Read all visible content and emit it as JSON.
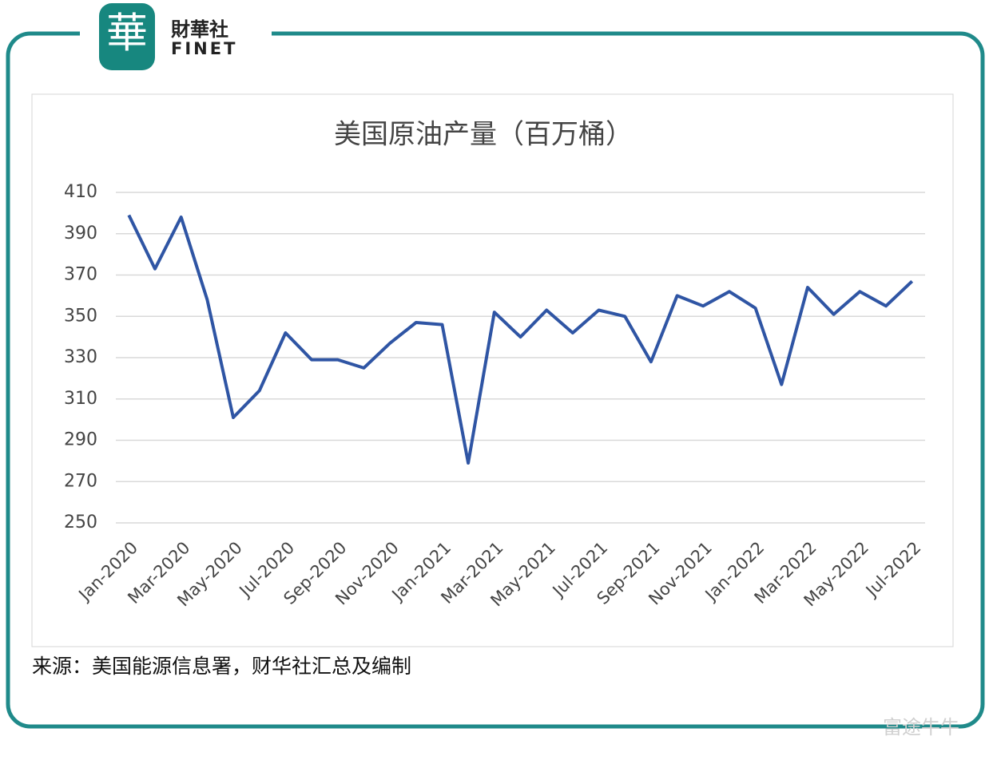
{
  "logo": {
    "mark": "華",
    "name": "財華社",
    "en": "FINET"
  },
  "chart_data": {
    "type": "line",
    "title": "美国原油产量（百万桶）",
    "categories": [
      "Jan-2020",
      null,
      "Mar-2020",
      null,
      "May-2020",
      null,
      "Jul-2020",
      null,
      "Sep-2020",
      null,
      "Nov-2020",
      null,
      "Jan-2021",
      null,
      "Mar-2021",
      null,
      "May-2021",
      null,
      "Jul-2021",
      null,
      "Sep-2021",
      null,
      "Nov-2021",
      null,
      "Jan-2022",
      null,
      "Mar-2022",
      null,
      "May-2022",
      null,
      "Jul-2022"
    ],
    "series": [
      {
        "color": "#2f55a4",
        "values": [
          399,
          373,
          398,
          358,
          301,
          314,
          342,
          329,
          329,
          325,
          337,
          347,
          346,
          279,
          352,
          340,
          353,
          342,
          353,
          350,
          328,
          360,
          355,
          362,
          354,
          317,
          364,
          351,
          362,
          355,
          367
        ]
      }
    ],
    "ylim": [
      250,
      410
    ],
    "yticks": [
      250,
      270,
      290,
      310,
      330,
      350,
      370,
      390,
      410
    ],
    "grid": true
  },
  "source": "来源：美国能源信息署，财华社汇总及编制",
  "watermark": "富途牛牛"
}
